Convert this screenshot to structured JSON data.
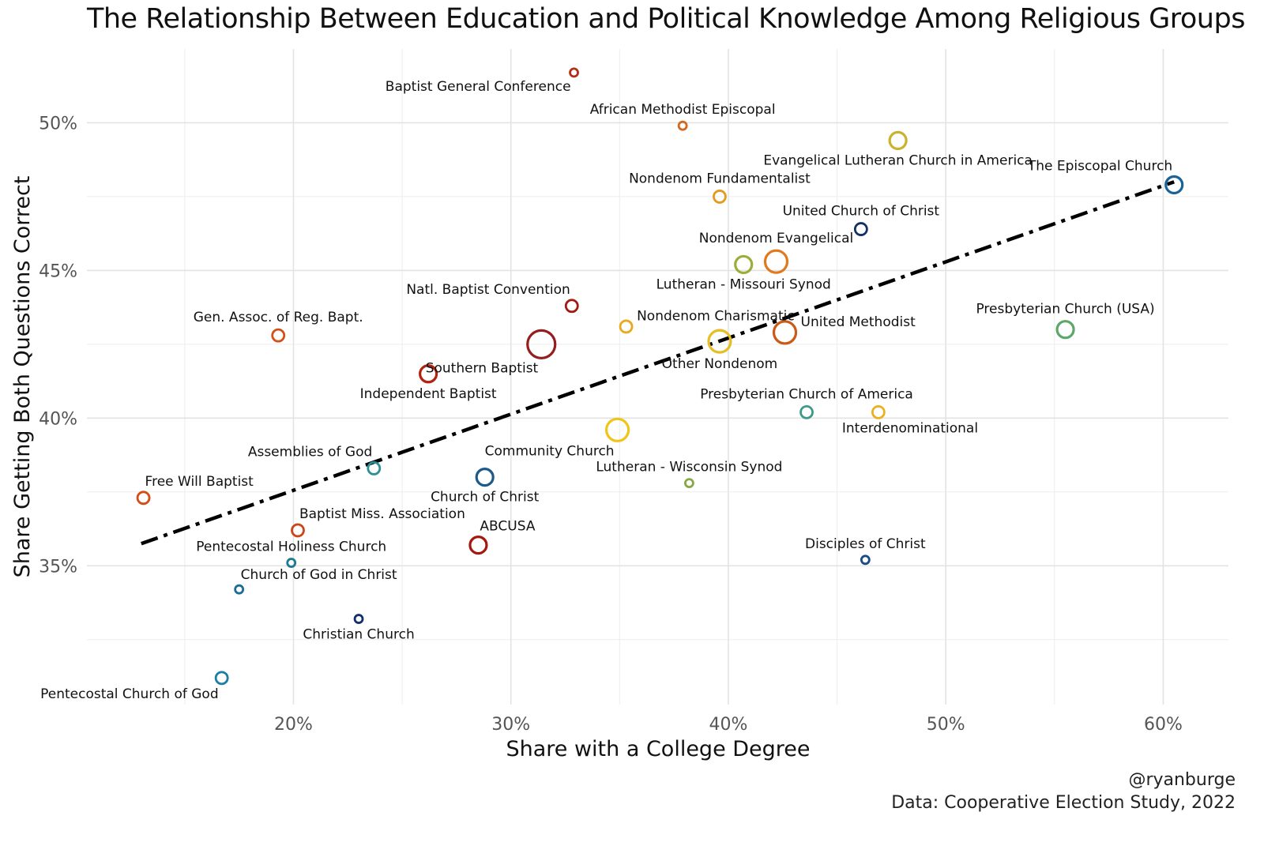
{
  "chart_data": {
    "type": "scatter",
    "title": "The Relationship Between Education and Political Knowledge Among Religious Groups",
    "xlabel": "Share with a College Degree",
    "ylabel": "Share Getting Both Questions Correct",
    "xlim": [
      10.5,
      63
    ],
    "ylim": [
      30.3,
      52.5
    ],
    "x_ticks": [
      20,
      30,
      40,
      50,
      60
    ],
    "y_ticks": [
      35,
      40,
      45,
      50
    ],
    "x_tick_labels": [
      "20%",
      "30%",
      "40%",
      "50%",
      "60%"
    ],
    "y_tick_labels": [
      "35%",
      "40%",
      "45%",
      "50%"
    ],
    "grid": true,
    "trend_line": {
      "style": "dash-dot",
      "color": "#000000",
      "x": [
        13,
        60.5
      ],
      "y": [
        35.75,
        48.0
      ]
    },
    "points": [
      {
        "name": "Baptist General Conference",
        "x": 32.9,
        "y": 51.7,
        "size": 1,
        "color": "#b32e14",
        "label_pos": "bl"
      },
      {
        "name": "African Methodist Episcopal",
        "x": 37.9,
        "y": 49.9,
        "size": 1,
        "color": "#d2691e",
        "label_pos": "tc"
      },
      {
        "name": "Evangelical Lutheran Church in America",
        "x": 47.8,
        "y": 49.4,
        "size": 3,
        "color": "#c9b22c",
        "label_pos": "bc"
      },
      {
        "name": "The Episcopal Church",
        "x": 60.5,
        "y": 47.9,
        "size": 3,
        "color": "#1b6396",
        "label_pos": "tl"
      },
      {
        "name": "Nondenom Fundamentalist",
        "x": 39.6,
        "y": 47.5,
        "size": 2,
        "color": "#e39a1d",
        "label_pos": "tc"
      },
      {
        "name": "United Church of Christ",
        "x": 46.1,
        "y": 46.4,
        "size": 2,
        "color": "#13306b",
        "label_pos": "tc"
      },
      {
        "name": "Nondenom Evangelical",
        "x": 42.2,
        "y": 45.3,
        "size": 4,
        "color": "#e0781d",
        "label_pos": "tc"
      },
      {
        "name": "Lutheran - Missouri Synod",
        "x": 40.7,
        "y": 45.2,
        "size": 3,
        "color": "#9cad3b",
        "label_pos": "bc"
      },
      {
        "name": "Natl. Baptist Convention",
        "x": 32.8,
        "y": 43.8,
        "size": 2,
        "color": "#a31a12",
        "label_pos": "tl"
      },
      {
        "name": "Presbyterian Church (USA)",
        "x": 55.5,
        "y": 43.0,
        "size": 3,
        "color": "#5da76a",
        "label_pos": "tc"
      },
      {
        "name": "Gen. Assoc. of Reg. Bapt.",
        "x": 19.3,
        "y": 42.8,
        "size": 2,
        "color": "#d2501a",
        "label_pos": "tc"
      },
      {
        "name": "Nondenom Charismatic",
        "x": 35.3,
        "y": 43.1,
        "size": 2,
        "color": "#e8aa1d",
        "label_pos": "r"
      },
      {
        "name": "United Methodist",
        "x": 42.6,
        "y": 42.9,
        "size": 4,
        "color": "#cc5a14",
        "label_pos": "r"
      },
      {
        "name": "Southern Baptist",
        "x": 31.4,
        "y": 42.5,
        "size": 5,
        "color": "#951d1d",
        "label_pos": "bl"
      },
      {
        "name": "Other Nondenom",
        "x": 39.6,
        "y": 42.6,
        "size": 4,
        "color": "#e6bd25",
        "label_pos": "bc"
      },
      {
        "name": "Independent Baptist",
        "x": 26.2,
        "y": 41.5,
        "size": 3,
        "color": "#b3220f",
        "label_pos": "bc"
      },
      {
        "name": "Presbyterian Church of America",
        "x": 43.6,
        "y": 40.2,
        "size": 2,
        "color": "#3e9a88",
        "label_pos": "tc"
      },
      {
        "name": "Interdenominational",
        "x": 46.9,
        "y": 40.2,
        "size": 2,
        "color": "#e8b11d",
        "label_pos": "br"
      },
      {
        "name": "Community Church",
        "x": 34.9,
        "y": 39.6,
        "size": 4,
        "color": "#f0c419",
        "label_pos": "bl"
      },
      {
        "name": "Assemblies of God",
        "x": 23.7,
        "y": 38.3,
        "size": 2,
        "color": "#2b8f96",
        "label_pos": "tl"
      },
      {
        "name": "Church of Christ",
        "x": 28.8,
        "y": 38.0,
        "size": 3,
        "color": "#1d5a8a",
        "label_pos": "bc"
      },
      {
        "name": "Lutheran - Wisconsin Synod",
        "x": 38.2,
        "y": 37.8,
        "size": 1,
        "color": "#86a846",
        "label_pos": "tc"
      },
      {
        "name": "Free Will Baptist",
        "x": 13.1,
        "y": 37.3,
        "size": 2,
        "color": "#d24e16",
        "label_pos": "tr"
      },
      {
        "name": "Baptist Miss. Association",
        "x": 20.2,
        "y": 36.2,
        "size": 2,
        "color": "#c9461b",
        "label_pos": "tr"
      },
      {
        "name": "ABCUSA",
        "x": 28.5,
        "y": 35.7,
        "size": 3,
        "color": "#a3180f",
        "label_pos": "tr"
      },
      {
        "name": "Disciples of Christ",
        "x": 46.3,
        "y": 35.2,
        "size": 1,
        "color": "#1a4b87",
        "label_pos": "tc"
      },
      {
        "name": "Pentecostal Holiness Church",
        "x": 19.9,
        "y": 35.1,
        "size": 1,
        "color": "#1c7a94",
        "label_pos": "tc"
      },
      {
        "name": "Church of God in Christ",
        "x": 17.5,
        "y": 34.2,
        "size": 1,
        "color": "#1b6c96",
        "label_pos": "tr"
      },
      {
        "name": "Christian Church",
        "x": 23.0,
        "y": 33.2,
        "size": 1,
        "color": "#11306b",
        "label_pos": "bc"
      },
      {
        "name": "Pentecostal Church of God",
        "x": 16.7,
        "y": 31.2,
        "size": 2,
        "color": "#1c7ea2",
        "label_pos": "bl"
      }
    ]
  },
  "caption": {
    "author": "@ryanburge",
    "source": "Data: Cooperative Election Study, 2022"
  }
}
